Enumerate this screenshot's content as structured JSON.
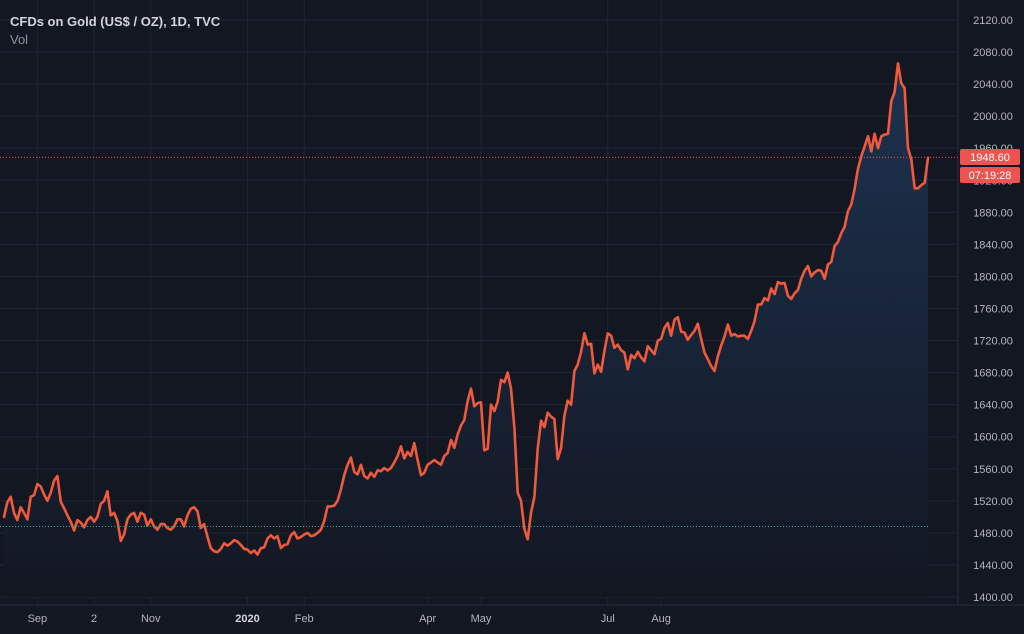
{
  "legend": {
    "title": "CFDs on Gold (US$ / OZ), 1D, TVC",
    "vol": "Vol"
  },
  "colors": {
    "background": "#131722",
    "grid": "#1f2431",
    "line": "#ef5a3c",
    "area_top": "#1d3250",
    "area_bottom": "#131722",
    "price_line": "#ef5350",
    "baseline": "#26a69a",
    "axis_text": "#b2b5be",
    "label_bg": "#ef5350",
    "label_text": "#ffffff"
  },
  "chart_data": {
    "type": "area",
    "title": "CFDs on Gold (US$ / OZ), 1D, TVC",
    "xlabel": "",
    "ylabel": "",
    "ylim": [
      1400,
      2120
    ],
    "y_ticks": [
      "1400.00",
      "1440.00",
      "1480.00",
      "1520.00",
      "1560.00",
      "1600.00",
      "1640.00",
      "1680.00",
      "1720.00",
      "1760.00",
      "1800.00",
      "1840.00",
      "1880.00",
      "1920.00",
      "1960.00",
      "2000.00",
      "2040.00",
      "2080.00",
      "2120.00"
    ],
    "x_ticks": [
      {
        "label": "Sep",
        "index": 10,
        "bold": false
      },
      {
        "label": "2",
        "index": 27,
        "bold": false
      },
      {
        "label": "Nov",
        "index": 44,
        "bold": false
      },
      {
        "label": "2020",
        "index": 73,
        "bold": true
      },
      {
        "label": "Feb",
        "index": 90,
        "bold": false
      },
      {
        "label": "Apr",
        "index": 127,
        "bold": false
      },
      {
        "label": "May",
        "index": 143,
        "bold": false
      },
      {
        "label": "Jul",
        "index": 181,
        "bold": false
      },
      {
        "label": "Aug",
        "index": 197,
        "bold": false
      }
    ],
    "grid": true,
    "last_price": "1948.60",
    "countdown": "07:19:28",
    "baseline_value": 1488,
    "series": [
      {
        "values": [
          1500,
          1518,
          1525,
          1505,
          1496,
          1512,
          1505,
          1497,
          1525,
          1527,
          1541,
          1538,
          1528,
          1520,
          1530,
          1545,
          1551,
          1519,
          1511,
          1502,
          1494,
          1483,
          1496,
          1493,
          1487,
          1496,
          1500,
          1494,
          1500,
          1516,
          1520,
          1532,
          1502,
          1505,
          1495,
          1470,
          1478,
          1497,
          1503,
          1505,
          1494,
          1505,
          1503,
          1489,
          1497,
          1488,
          1484,
          1491,
          1491,
          1486,
          1484,
          1488,
          1497,
          1497,
          1488,
          1502,
          1510,
          1512,
          1507,
          1486,
          1491,
          1475,
          1461,
          1457,
          1456,
          1460,
          1467,
          1464,
          1467,
          1471,
          1469,
          1465,
          1460,
          1459,
          1455,
          1458,
          1453,
          1461,
          1462,
          1473,
          1477,
          1473,
          1476,
          1461,
          1465,
          1466,
          1477,
          1481,
          1473,
          1475,
          1478,
          1480,
          1476,
          1477,
          1480,
          1484,
          1495,
          1513,
          1513,
          1514,
          1520,
          1534,
          1552,
          1565,
          1574,
          1556,
          1553,
          1565,
          1551,
          1548,
          1555,
          1550,
          1558,
          1557,
          1561,
          1558,
          1561,
          1568,
          1576,
          1588,
          1573,
          1581,
          1576,
          1592,
          1571,
          1552,
          1555,
          1565,
          1568,
          1571,
          1568,
          1565,
          1576,
          1580,
          1596,
          1586,
          1603,
          1614,
          1621,
          1645,
          1660,
          1638,
          1642,
          1643,
          1583,
          1585,
          1640,
          1632,
          1644,
          1671,
          1668,
          1680,
          1660,
          1611,
          1530,
          1520,
          1485,
          1472,
          1505,
          1525,
          1585,
          1620,
          1612,
          1630,
          1625,
          1622,
          1572,
          1586,
          1626,
          1645,
          1640,
          1682,
          1690,
          1706,
          1729,
          1715,
          1716,
          1679,
          1690,
          1681,
          1707,
          1729,
          1726,
          1711,
          1715,
          1708,
          1705,
          1684,
          1702,
          1698,
          1706,
          1699,
          1694,
          1713,
          1708,
          1703,
          1720,
          1722,
          1736,
          1742,
          1726,
          1746,
          1749,
          1731,
          1730,
          1721,
          1727,
          1732,
          1741,
          1722,
          1705,
          1697,
          1688,
          1682,
          1700,
          1714,
          1725,
          1740,
          1726,
          1728,
          1725,
          1726,
          1726,
          1722,
          1732,
          1744,
          1765,
          1765,
          1773,
          1770,
          1785,
          1778,
          1793,
          1791,
          1792,
          1776,
          1772,
          1779,
          1783,
          1797,
          1807,
          1813,
          1800,
          1805,
          1808,
          1807,
          1797,
          1815,
          1818,
          1838,
          1843,
          1854,
          1862,
          1881,
          1890,
          1909,
          1934,
          1950,
          1962,
          1975,
          1956,
          1978,
          1960,
          1975,
          1977,
          1978,
          2019,
          2030,
          2066,
          2041,
          2035,
          1960,
          1946,
          1910,
          1910,
          1914,
          1917,
          1948
        ]
      }
    ]
  }
}
